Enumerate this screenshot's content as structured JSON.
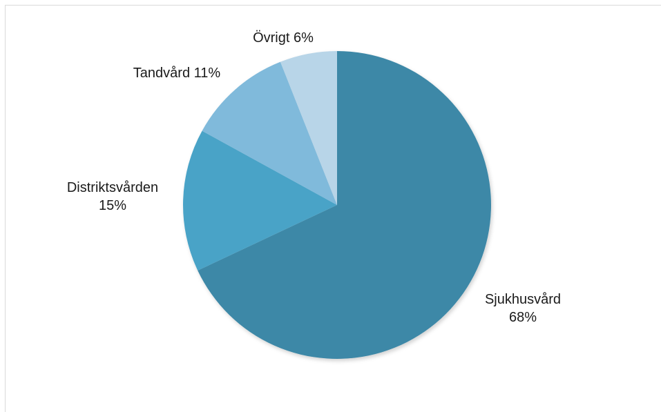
{
  "chart_data": {
    "type": "pie",
    "categories": [
      "Sjukhusvård",
      "Distriktsvården",
      "Tandvård",
      "Övrigt"
    ],
    "values": [
      68,
      15,
      11,
      6
    ],
    "labels": [
      "Sjukhusvård 68%",
      "Distriktsvården 15%",
      "Tandvård 11%",
      "Övrigt 6%"
    ],
    "colors": [
      "#3e88a7",
      "#4aa3c7",
      "#80badb",
      "#b8d5e8"
    ],
    "start_angle": "12 o'clock",
    "direction": "clockwise",
    "title": "",
    "legend": "none"
  },
  "labels": {
    "sjukhus_name": "Sjukhusvård",
    "sjukhus_pct": "68%",
    "distrikt_name": "Distriktsvården",
    "distrikt_pct": "15%",
    "tand": "Tandvård 11%",
    "ovrigt": "Övrigt 6%"
  }
}
